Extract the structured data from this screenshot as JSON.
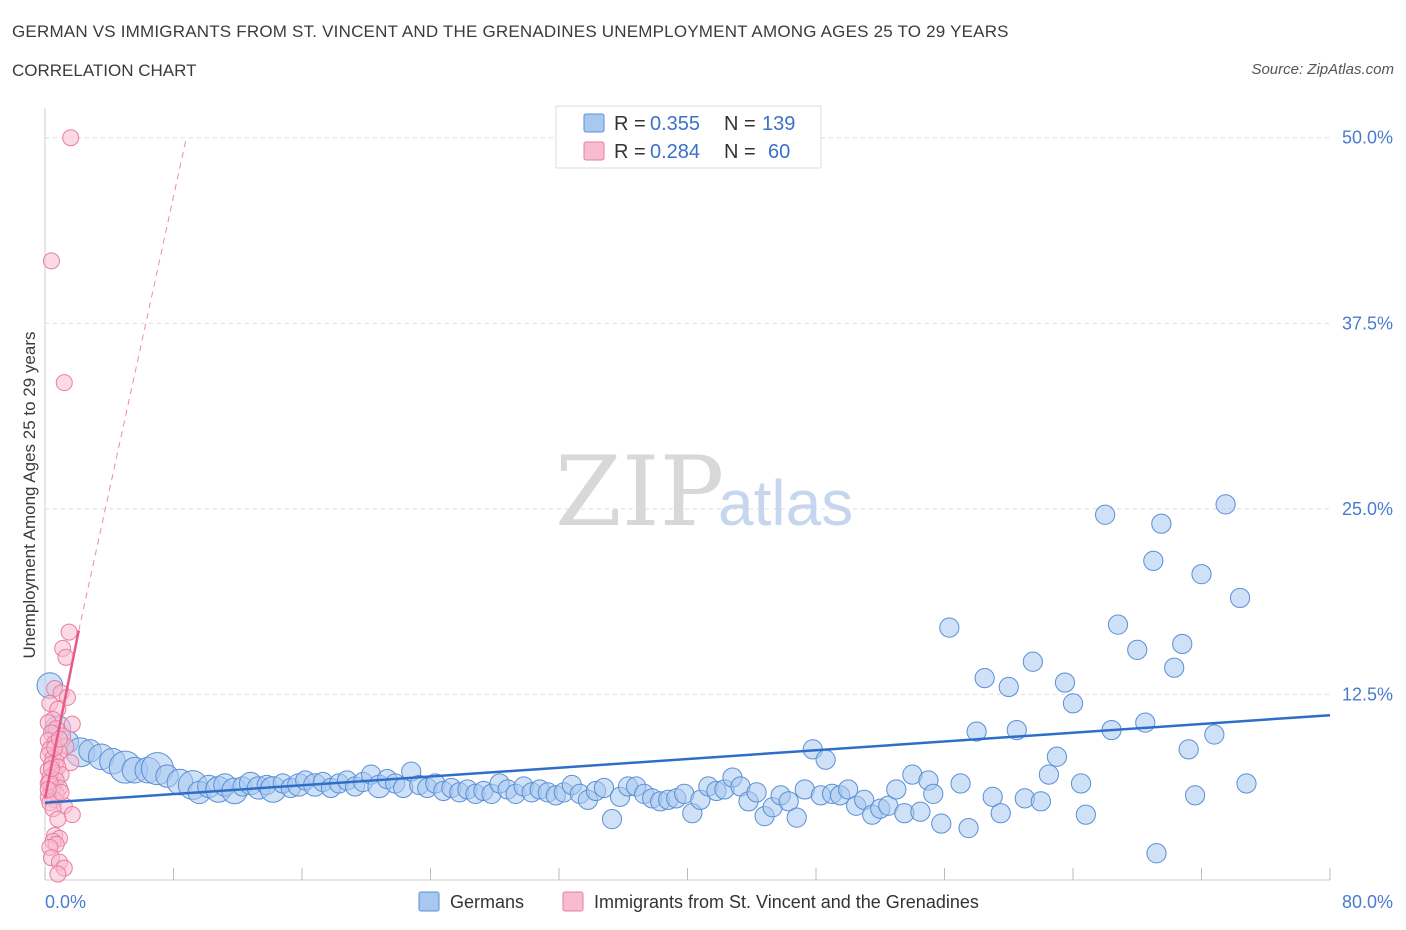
{
  "title": "GERMAN VS IMMIGRANTS FROM ST. VINCENT AND THE GRENADINES UNEMPLOYMENT AMONG AGES 25 TO 29 YEARS",
  "subtitle": "CORRELATION CHART",
  "source": "Source: ZipAtlas.com",
  "watermark": {
    "zip": "ZIP",
    "atlas": "atlas"
  },
  "legend": {
    "r_label": "R =",
    "n_label": "N =",
    "rows": [
      {
        "r": "0.355",
        "n": "139"
      },
      {
        "r": "0.284",
        "n": "60"
      }
    ]
  },
  "colors": {
    "germans_fill": "#a8c8f0",
    "germans_stroke": "#5b8fd6",
    "germans_line": "#2f6ec8",
    "svg_fill": "#f8bcd0",
    "svg_stroke": "#e97ea0",
    "svg_line": "#e8588a",
    "axis_label": "#4a7bd0",
    "grid": "#dddddd"
  },
  "chart_data": {
    "type": "scatter",
    "title": "GERMAN VS IMMIGRANTS FROM ST. VINCENT AND THE GRENADINES UNEMPLOYMENT AMONG AGES 25 TO 29 YEARS",
    "xlabel": "",
    "ylabel": "Unemployment Among Ages 25 to 29 years",
    "xlim": [
      0,
      80
    ],
    "ylim": [
      0,
      52
    ],
    "x_tick_labels": [
      "0.0%",
      "80.0%"
    ],
    "y_ticks": [
      12.5,
      25.0,
      37.5,
      50.0
    ],
    "y_tick_labels": [
      "12.5%",
      "25.0%",
      "37.5%",
      "50.0%"
    ],
    "grid": true,
    "legend_position": "top-center",
    "series": [
      {
        "name": "Germans",
        "r": 0.355,
        "n": 139,
        "trend": {
          "x": [
            0,
            80
          ],
          "y": [
            5.2,
            11.1
          ]
        },
        "points": [
          [
            0.3,
            13.1,
            1.6
          ],
          [
            0.8,
            10.2,
            1.6
          ],
          [
            1.4,
            9.3,
            1.4
          ],
          [
            2.2,
            8.6,
            1.8
          ],
          [
            2.8,
            8.7,
            1.4
          ],
          [
            3.5,
            8.3,
            1.6
          ],
          [
            4.2,
            8.0,
            1.6
          ],
          [
            5.0,
            7.6,
            2.0
          ],
          [
            5.6,
            7.4,
            1.6
          ],
          [
            6.4,
            7.4,
            1.6
          ],
          [
            7.0,
            7.5,
            2.0
          ],
          [
            7.6,
            7.0,
            1.4
          ],
          [
            8.4,
            6.6,
            1.6
          ],
          [
            9.2,
            6.4,
            1.8
          ],
          [
            9.6,
            5.9,
            1.4
          ],
          [
            10.2,
            6.3,
            1.4
          ],
          [
            10.8,
            6.1,
            1.6
          ],
          [
            11.2,
            6.4,
            1.4
          ],
          [
            11.8,
            6.0,
            1.6
          ],
          [
            12.3,
            6.3,
            1.2
          ],
          [
            12.8,
            6.5,
            1.4
          ],
          [
            13.3,
            6.2,
            1.4
          ],
          [
            13.8,
            6.4,
            1.2
          ],
          [
            14.2,
            6.1,
            1.6
          ],
          [
            14.8,
            6.5,
            1.2
          ],
          [
            15.3,
            6.2,
            1.2
          ],
          [
            15.8,
            6.4,
            1.4
          ],
          [
            16.2,
            6.7,
            1.2
          ],
          [
            16.8,
            6.4,
            1.4
          ],
          [
            17.3,
            6.6,
            1.2
          ],
          [
            17.8,
            6.2,
            1.2
          ],
          [
            18.3,
            6.5,
            1.2
          ],
          [
            18.8,
            6.7,
            1.2
          ],
          [
            19.3,
            6.3,
            1.2
          ],
          [
            19.8,
            6.6,
            1.2
          ],
          [
            20.3,
            7.1,
            1.2
          ],
          [
            20.8,
            6.3,
            1.4
          ],
          [
            21.3,
            6.8,
            1.2
          ],
          [
            21.8,
            6.5,
            1.2
          ],
          [
            22.3,
            6.2,
            1.2
          ],
          [
            22.8,
            7.3,
            1.2
          ],
          [
            23.3,
            6.4,
            1.2
          ],
          [
            23.8,
            6.2,
            1.2
          ],
          [
            24.3,
            6.5,
            1.2
          ],
          [
            24.8,
            6.0,
            1.2
          ],
          [
            25.3,
            6.2,
            1.2
          ],
          [
            25.8,
            5.9,
            1.2
          ],
          [
            26.3,
            6.1,
            1.2
          ],
          [
            26.8,
            5.8,
            1.2
          ],
          [
            27.3,
            6.0,
            1.2
          ],
          [
            27.8,
            5.8,
            1.2
          ],
          [
            28.3,
            6.5,
            1.2
          ],
          [
            28.8,
            6.1,
            1.2
          ],
          [
            29.3,
            5.8,
            1.2
          ],
          [
            29.8,
            6.3,
            1.2
          ],
          [
            30.3,
            5.9,
            1.2
          ],
          [
            30.8,
            6.1,
            1.2
          ],
          [
            31.3,
            5.9,
            1.2
          ],
          [
            31.8,
            5.7,
            1.2
          ],
          [
            32.3,
            5.9,
            1.2
          ],
          [
            32.8,
            6.4,
            1.2
          ],
          [
            33.3,
            5.8,
            1.2
          ],
          [
            33.8,
            5.4,
            1.2
          ],
          [
            34.3,
            6.0,
            1.2
          ],
          [
            34.8,
            6.2,
            1.2
          ],
          [
            35.3,
            4.1,
            1.2
          ],
          [
            35.8,
            5.6,
            1.2
          ],
          [
            36.3,
            6.3,
            1.2
          ],
          [
            36.8,
            6.3,
            1.2
          ],
          [
            37.3,
            5.8,
            1.2
          ],
          [
            37.8,
            5.5,
            1.2
          ],
          [
            38.3,
            5.3,
            1.2
          ],
          [
            38.8,
            5.4,
            1.2
          ],
          [
            39.3,
            5.5,
            1.2
          ],
          [
            39.8,
            5.8,
            1.2
          ],
          [
            40.3,
            4.5,
            1.2
          ],
          [
            40.8,
            5.4,
            1.2
          ],
          [
            41.3,
            6.3,
            1.2
          ],
          [
            41.8,
            6.0,
            1.2
          ],
          [
            42.3,
            6.1,
            1.2
          ],
          [
            42.8,
            6.9,
            1.2
          ],
          [
            43.3,
            6.3,
            1.2
          ],
          [
            43.8,
            5.3,
            1.2
          ],
          [
            44.3,
            5.9,
            1.2
          ],
          [
            44.8,
            4.3,
            1.2
          ],
          [
            45.3,
            4.9,
            1.2
          ],
          [
            45.8,
            5.7,
            1.2
          ],
          [
            46.3,
            5.3,
            1.2
          ],
          [
            46.8,
            4.2,
            1.2
          ],
          [
            47.3,
            6.1,
            1.2
          ],
          [
            47.8,
            8.8,
            1.2
          ],
          [
            48.3,
            5.7,
            1.2
          ],
          [
            48.6,
            8.1,
            1.2
          ],
          [
            49.0,
            5.8,
            1.2
          ],
          [
            49.5,
            5.7,
            1.2
          ],
          [
            50.0,
            6.1,
            1.2
          ],
          [
            50.5,
            5.0,
            1.2
          ],
          [
            51.0,
            5.4,
            1.2
          ],
          [
            51.5,
            4.4,
            1.2
          ],
          [
            52.0,
            4.8,
            1.2
          ],
          [
            52.5,
            5.0,
            1.2
          ],
          [
            53.0,
            6.1,
            1.2
          ],
          [
            53.5,
            4.5,
            1.2
          ],
          [
            54.0,
            7.1,
            1.2
          ],
          [
            54.5,
            4.6,
            1.2
          ],
          [
            55.0,
            6.7,
            1.2
          ],
          [
            55.3,
            5.8,
            1.2
          ],
          [
            55.8,
            3.8,
            1.2
          ],
          [
            56.3,
            17.0,
            1.2
          ],
          [
            57.0,
            6.5,
            1.2
          ],
          [
            57.5,
            3.5,
            1.2
          ],
          [
            58.0,
            10.0,
            1.2
          ],
          [
            58.5,
            13.6,
            1.2
          ],
          [
            59.0,
            5.6,
            1.2
          ],
          [
            59.5,
            4.5,
            1.2
          ],
          [
            60.0,
            13.0,
            1.2
          ],
          [
            60.5,
            10.1,
            1.2
          ],
          [
            61.0,
            5.5,
            1.2
          ],
          [
            61.5,
            14.7,
            1.2
          ],
          [
            62.0,
            5.3,
            1.2
          ],
          [
            62.5,
            7.1,
            1.2
          ],
          [
            63.0,
            8.3,
            1.2
          ],
          [
            63.5,
            13.3,
            1.2
          ],
          [
            64.0,
            11.9,
            1.2
          ],
          [
            64.5,
            6.5,
            1.2
          ],
          [
            64.8,
            4.4,
            1.2
          ],
          [
            66.0,
            24.6,
            1.2
          ],
          [
            66.4,
            10.1,
            1.2
          ],
          [
            66.8,
            17.2,
            1.2
          ],
          [
            68.0,
            15.5,
            1.2
          ],
          [
            68.5,
            10.6,
            1.2
          ],
          [
            69.0,
            21.5,
            1.2
          ],
          [
            69.5,
            24.0,
            1.2
          ],
          [
            69.2,
            1.8,
            1.2
          ],
          [
            70.3,
            14.3,
            1.2
          ],
          [
            70.8,
            15.9,
            1.2
          ],
          [
            71.2,
            8.8,
            1.2
          ],
          [
            71.6,
            5.7,
            1.2
          ],
          [
            72.0,
            20.6,
            1.2
          ],
          [
            72.8,
            9.8,
            1.2
          ],
          [
            73.5,
            25.3,
            1.2
          ],
          [
            74.4,
            19.0,
            1.2
          ],
          [
            74.8,
            6.5,
            1.2
          ]
        ]
      },
      {
        "name": "Immigrants from St. Vincent and the Grenadines",
        "r": 0.284,
        "n": 60,
        "trend_solid": {
          "x": [
            0,
            2.1
          ],
          "y": [
            5.5,
            16.8
          ]
        },
        "trend_dashed": {
          "x": [
            2.1,
            8.8
          ],
          "y": [
            16.8,
            50.0
          ]
        },
        "points": [
          [
            1.6,
            50.0
          ],
          [
            0.4,
            41.7
          ],
          [
            1.2,
            33.5
          ],
          [
            1.5,
            16.7
          ],
          [
            1.1,
            15.6
          ],
          [
            1.3,
            15.0
          ],
          [
            0.6,
            12.9
          ],
          [
            1.0,
            12.6
          ],
          [
            1.4,
            12.3
          ],
          [
            0.3,
            11.9
          ],
          [
            0.8,
            11.5
          ],
          [
            0.5,
            10.8
          ],
          [
            0.2,
            10.6
          ],
          [
            1.7,
            10.5
          ],
          [
            0.7,
            10.2
          ],
          [
            0.4,
            9.9
          ],
          [
            1.1,
            9.7
          ],
          [
            0.2,
            9.4
          ],
          [
            0.6,
            9.2
          ],
          [
            1.3,
            9.0
          ],
          [
            0.3,
            8.8
          ],
          [
            0.9,
            8.6
          ],
          [
            0.2,
            8.4
          ],
          [
            0.5,
            8.2
          ],
          [
            0.7,
            8.0
          ],
          [
            1.6,
            7.9
          ],
          [
            0.4,
            7.8
          ],
          [
            0.8,
            7.6
          ],
          [
            0.2,
            7.4
          ],
          [
            0.6,
            7.2
          ],
          [
            1.0,
            7.1
          ],
          [
            0.3,
            6.9
          ],
          [
            0.7,
            6.7
          ],
          [
            0.2,
            6.5
          ],
          [
            0.5,
            6.3
          ],
          [
            0.9,
            6.2
          ],
          [
            0.4,
            6.0
          ],
          [
            0.7,
            5.8
          ],
          [
            0.2,
            5.6
          ],
          [
            0.6,
            5.4
          ],
          [
            0.3,
            5.2
          ],
          [
            1.2,
            5.0
          ],
          [
            0.5,
            4.8
          ],
          [
            1.7,
            4.4
          ],
          [
            0.8,
            4.1
          ],
          [
            0.6,
            3.0
          ],
          [
            0.9,
            2.8
          ],
          [
            0.5,
            2.6
          ],
          [
            0.7,
            2.4
          ],
          [
            0.3,
            2.2
          ],
          [
            0.4,
            1.5
          ],
          [
            0.9,
            1.2
          ],
          [
            1.2,
            0.8
          ],
          [
            0.8,
            0.4
          ],
          [
            0.3,
            6.6
          ],
          [
            1.0,
            5.9
          ],
          [
            0.4,
            7.5
          ],
          [
            0.6,
            8.9
          ],
          [
            0.9,
            9.5
          ],
          [
            0.2,
            6.1
          ]
        ]
      }
    ]
  },
  "bottom_legend": [
    "Germans",
    "Immigrants from St. Vincent and the Grenadines"
  ]
}
